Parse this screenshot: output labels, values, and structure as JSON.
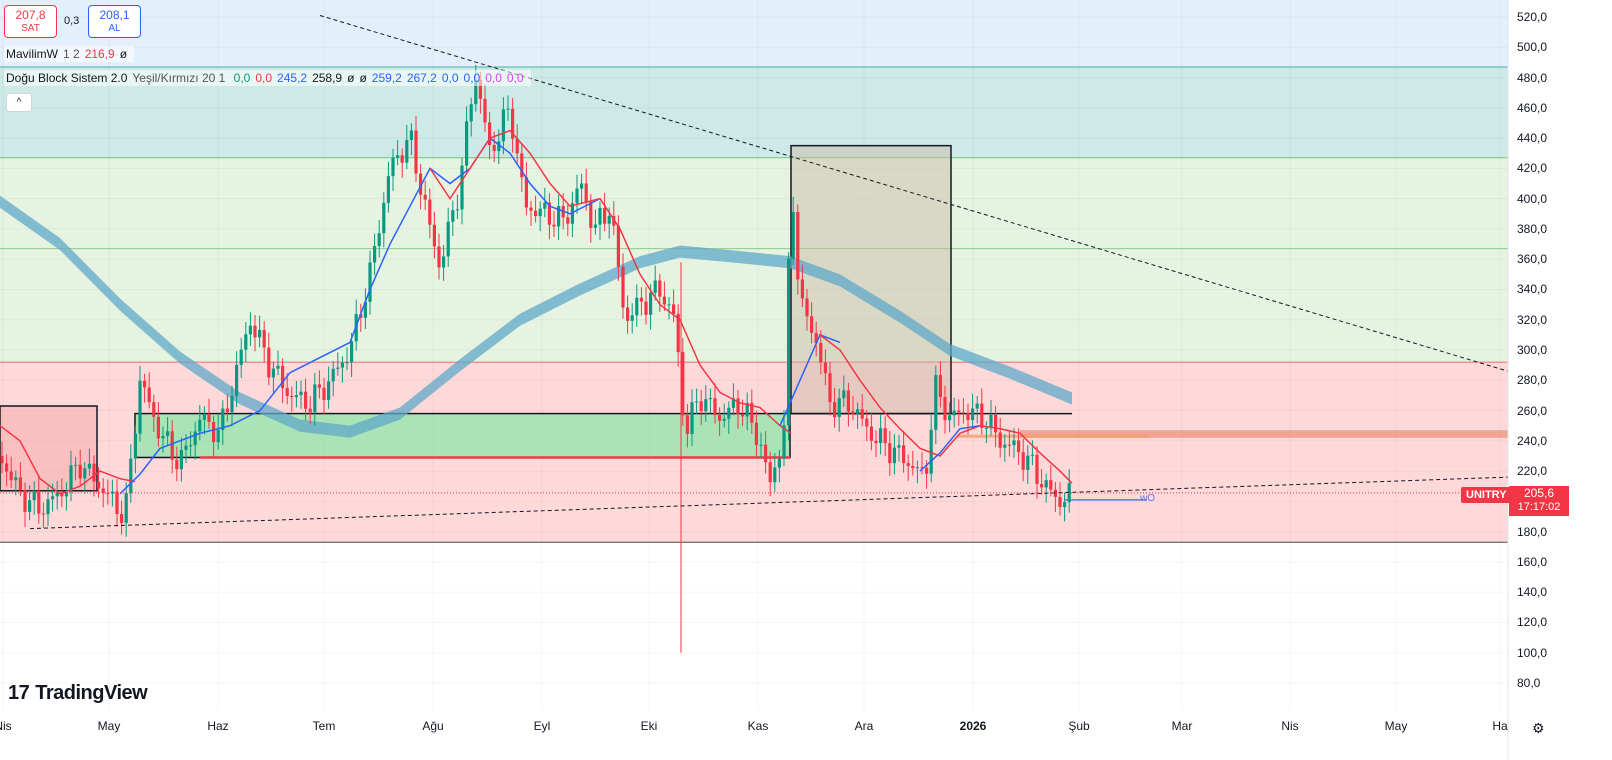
{
  "trade": {
    "sell_price": "207,8",
    "sell_label": "SAT",
    "spread": "0,3",
    "buy_price": "208,1",
    "buy_label": "AL"
  },
  "legend": {
    "indicator1": {
      "name": "MavilimW",
      "params": "1 2",
      "value": "216,9",
      "extra": "ø"
    },
    "indicator2": {
      "name": "Doğu Block Sistem 2.0",
      "params": "Yeşil/Kırmızı 20 1",
      "values": [
        "0,0",
        "0,0",
        "245,2",
        "258,9",
        "ø",
        "ø",
        "259,2",
        "267,2",
        "0,0",
        "0,0",
        "0,0",
        "0,0"
      ],
      "value_colors": [
        "#089981",
        "#f23645",
        "#2962ff",
        "#131722",
        "#131722",
        "#131722",
        "#2962ff",
        "#2962ff",
        "#2962ff",
        "#2962ff",
        "#e040fb",
        "#e040fb"
      ]
    },
    "collapse_icon": "chevron-up-icon"
  },
  "logo_text": "TradingView",
  "symbol": "UNITRY",
  "last_price": "205,6",
  "countdown": "17:17:02",
  "y_axis_ticks": [
    "520,0",
    "500,0",
    "480,0",
    "460,0",
    "440,0",
    "420,0",
    "400,0",
    "380,0",
    "360,0",
    "340,0",
    "320,0",
    "300,0",
    "280,0",
    "260,0",
    "240,0",
    "220,0",
    "200,0",
    "180,0",
    "160,0",
    "140,0",
    "120,0",
    "100,0",
    "80,0"
  ],
  "x_axis_ticks": [
    "Nis",
    "May",
    "Haz",
    "Tem",
    "Ağu",
    "Eyl",
    "Eki",
    "Kas",
    "Ara",
    "2026",
    "Şub",
    "Mar",
    "Nis",
    "May",
    "Ha"
  ],
  "annotations": {
    "box_label": "wO"
  },
  "colors": {
    "up": "#089981",
    "down": "#f23645",
    "ma_red": "#f23645",
    "ma_blue": "#2962ff",
    "band": "#5fa8c8",
    "zone_blue": "#e3f0fb",
    "zone_teal": "#cdeae6",
    "zone_green": "#e6f3e1",
    "zone_red": "#fdd9d9"
  },
  "chart_data": {
    "type": "candlestick",
    "price_axis": {
      "min": 80,
      "max": 520,
      "step": 20
    },
    "horizontal_levels": [
      487,
      427,
      367,
      292,
      173
    ],
    "last_price": 205.6
  }
}
